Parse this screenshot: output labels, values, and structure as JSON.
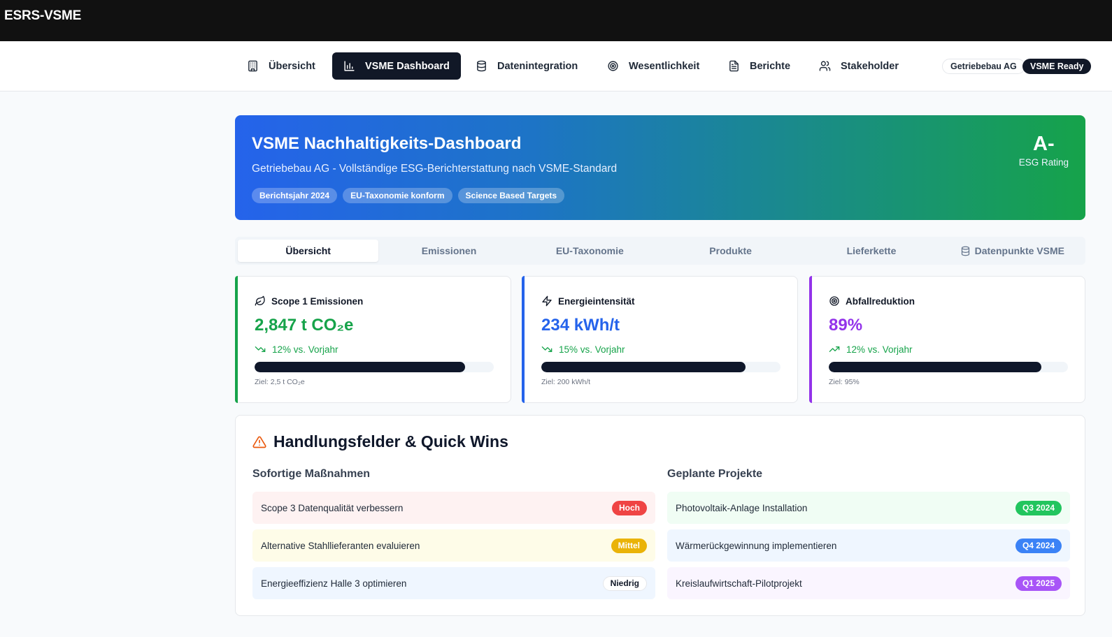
{
  "app": {
    "title": "ESRS-VSME"
  },
  "nav": {
    "items": [
      {
        "label": "Übersicht",
        "icon": "building-icon"
      },
      {
        "label": "VSME Dashboard",
        "icon": "bar-chart-icon"
      },
      {
        "label": "Datenintegration",
        "icon": "database-icon"
      },
      {
        "label": "Wesentlichkeit",
        "icon": "target-icon"
      },
      {
        "label": "Berichte",
        "icon": "file-text-icon"
      },
      {
        "label": "Stakeholder",
        "icon": "users-icon"
      }
    ],
    "company_badge": "Getriebebau AG",
    "status_badge": "VSME Ready"
  },
  "hero": {
    "title": "VSME Nachhaltigkeits-Dashboard",
    "subtitle": "Getriebebau AG - Vollständige ESG-Berichterstattung nach VSME-Standard",
    "tags": [
      "Berichtsjahr 2024",
      "EU-Taxonomie konform",
      "Science Based Targets"
    ],
    "rating_value": "A-",
    "rating_label": "ESG Rating"
  },
  "tabs": [
    "Übersicht",
    "Emissionen",
    "EU-Taxonomie",
    "Produkte",
    "Lieferkette",
    "Datenpunkte VSME"
  ],
  "kpis": [
    {
      "label": "Scope 1 Emissionen",
      "value": "2,847 t CO₂e",
      "trend": "12% vs. Vorjahr",
      "goal": "Ziel: 2,5 t CO₂e",
      "progress": 0.88,
      "accent": "#16a34a",
      "icon": "leaf-icon",
      "trend_icon": "trending-down-icon"
    },
    {
      "label": "Energieintensität",
      "value": "234 kWh/t",
      "trend": "15% vs. Vorjahr",
      "goal": "Ziel: 200 kWh/t",
      "progress": 0.855,
      "accent": "#2563eb",
      "icon": "zap-icon",
      "trend_icon": "trending-down-icon"
    },
    {
      "label": "Abfallreduktion",
      "value": "89%",
      "trend": "12% vs. Vorjahr",
      "goal": "Ziel: 95%",
      "progress": 0.89,
      "accent": "#9333ea",
      "icon": "target-icon",
      "trend_icon": "trending-up-icon"
    }
  ],
  "actions": {
    "title": "Handlungsfelder & Quick Wins",
    "immediate_title": "Sofortige Maßnahmen",
    "planned_title": "Geplante Projekte",
    "immediate": [
      {
        "text": "Scope 3 Datenqualität verbessern",
        "badge": "Hoch",
        "bg": "#fef2f2",
        "badge_bg": "#ef4444",
        "badge_color": "#ffffff"
      },
      {
        "text": "Alternative Stahllieferanten evaluieren",
        "badge": "Mittel",
        "bg": "#fefce8",
        "badge_bg": "#eab308",
        "badge_color": "#ffffff"
      },
      {
        "text": "Energieeffizienz Halle 3 optimieren",
        "badge": "Niedrig",
        "bg": "#eff6ff",
        "badge_bg": "#ffffff",
        "badge_color": "#111827"
      }
    ],
    "planned": [
      {
        "text": "Photovoltaik-Anlage Installation",
        "badge": "Q3 2024",
        "bg": "#f0fdf4",
        "badge_bg": "#22c55e",
        "badge_color": "#ffffff"
      },
      {
        "text": "Wärmerückgewinnung implementieren",
        "badge": "Q4 2024",
        "bg": "#eff6ff",
        "badge_bg": "#3b82f6",
        "badge_color": "#ffffff"
      },
      {
        "text": "Kreislaufwirtschaft-Pilotprojekt",
        "badge": "Q1 2025",
        "bg": "#faf5ff",
        "badge_bg": "#a855f7",
        "badge_color": "#ffffff"
      }
    ]
  }
}
